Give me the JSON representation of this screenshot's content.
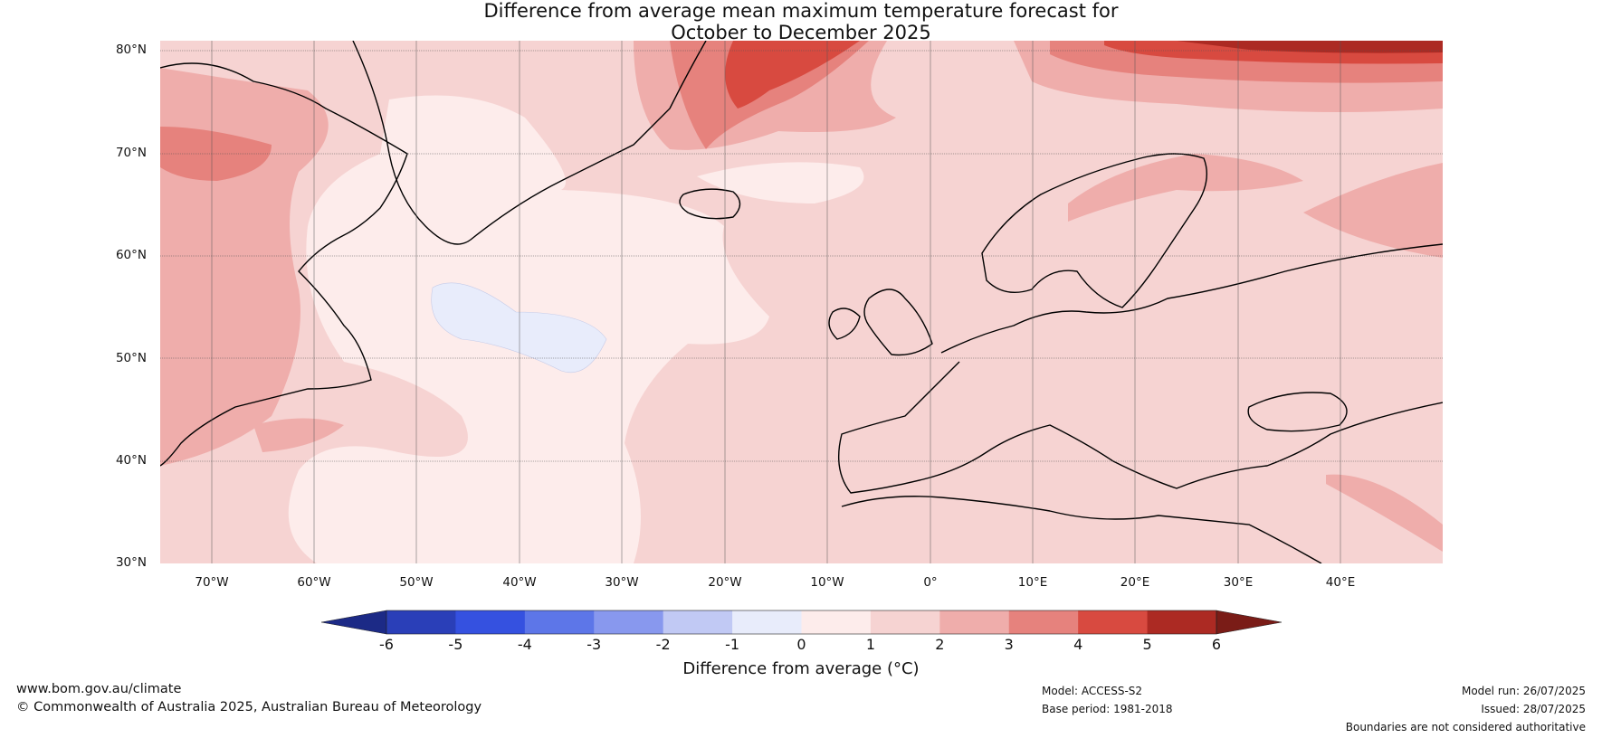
{
  "title": {
    "line1": "Difference from average mean maximum temperature forecast for",
    "line2": "October to December 2025"
  },
  "map": {
    "lat_labels": [
      "80°N",
      "70°N",
      "60°N",
      "50°N",
      "40°N",
      "30°N"
    ],
    "lon_labels": [
      "70°W",
      "60°W",
      "50°W",
      "40°W",
      "30°W",
      "20°W",
      "10°W",
      "0°",
      "10°E",
      "20°E",
      "30°E",
      "40°E"
    ],
    "extent": {
      "lon": [
        -75,
        50
      ],
      "lat": [
        30,
        81
      ]
    }
  },
  "colorbar": {
    "ticks": [
      "-6",
      "-5",
      "-4",
      "-3",
      "-2",
      "-1",
      "0",
      "1",
      "2",
      "3",
      "4",
      "5",
      "6"
    ],
    "colors": [
      "#1c2a86",
      "#2a3fb8",
      "#3551e0",
      "#5d76e8",
      "#8898ee",
      "#c1c9f4",
      "#e8ecfb",
      "#fdeceb",
      "#f6d3d2",
      "#efadab",
      "#e6827d",
      "#d84a40",
      "#ac2a23",
      "#7a1c17"
    ],
    "label": "Difference from average (°C)"
  },
  "footer": {
    "website": "www.bom.gov.au/climate",
    "copyright": "© Commonwealth of Australia 2025, Australian Bureau of Meteorology",
    "model": "Model: ACCESS-S2",
    "base_period": "Base period: 1981-2018",
    "model_run": "Model run: 26/07/2025",
    "issued": "Issued: 28/07/2025",
    "boundaries": "Boundaries are not considered authoritative"
  }
}
